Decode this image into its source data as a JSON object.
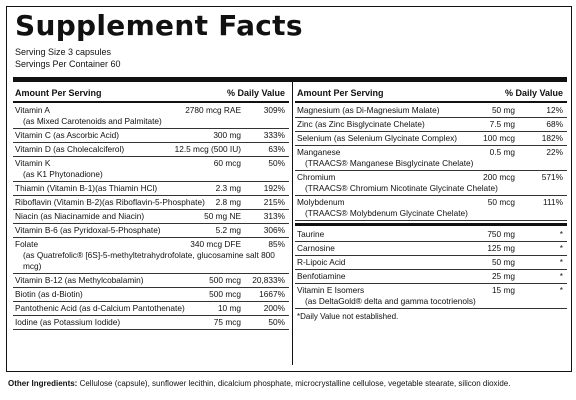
{
  "title": "Supplement Facts",
  "serving_size": "Serving Size 3 capsules",
  "servings_per_container": "Servings Per Container 60",
  "headers": {
    "amount": "Amount Per Serving",
    "dv": "% Daily Value"
  },
  "left_rows": [
    {
      "name": "Vitamin A",
      "sub": "(as Mixed Carotenoids and Palmitate)",
      "amount": "2780 mcg RAE",
      "pct": "309%"
    },
    {
      "name": "Vitamin C (as Ascorbic Acid)",
      "sub": "",
      "amount": "300 mg",
      "pct": "333%"
    },
    {
      "name": "Vitamin D (as Cholecalciferol)",
      "sub": "",
      "amount": "12.5 mcg (500 IU)",
      "pct": "63%"
    },
    {
      "name": "Vitamin K",
      "sub": "(as K1 Phytonadione)",
      "amount": "60 mcg",
      "pct": "50%"
    },
    {
      "name": "Thiamin (Vitamin B-1)(as Thiamin HCl)",
      "sub": "",
      "amount": "2.3 mg",
      "pct": "192%"
    },
    {
      "name": "Riboflavin (Vitamin B-2)(as Riboflavin-5-Phosphate)",
      "sub": "",
      "amount": "2.8 mg",
      "pct": "215%"
    },
    {
      "name": "Niacin (as Niacinamide and Niacin)",
      "sub": "",
      "amount": "50 mg NE",
      "pct": "313%"
    },
    {
      "name": "Vitamin B-6 (as Pyridoxal-5-Phosphate)",
      "sub": "",
      "amount": "5.2 mg",
      "pct": "306%"
    },
    {
      "name": "Folate",
      "sub": "(as Quatrefolic® [6S]-5-methyltetrahydrofolate, glucosamine salt 800 mcg)",
      "amount": "340 mcg DFE",
      "pct": "85%"
    },
    {
      "name": "Vitamin B-12 (as Methylcobalamin)",
      "sub": "",
      "amount": "500 mcg",
      "pct": "20,833%"
    },
    {
      "name": "Biotin (as d-Biotin)",
      "sub": "",
      "amount": "500 mcg",
      "pct": "1667%"
    },
    {
      "name": "Pantothenic Acid (as d-Calcium Pantothenate)",
      "sub": "",
      "amount": "10 mg",
      "pct": "200%"
    },
    {
      "name": "Iodine (as Potassium Iodide)",
      "sub": "",
      "amount": "75 mcg",
      "pct": "50%"
    }
  ],
  "right_rows": [
    {
      "name": "Magnesium (as Di-Magnesium Malate)",
      "sub": "",
      "amount": "50 mg",
      "pct": "12%"
    },
    {
      "name": "Zinc (as Zinc Bisglycinate Chelate)",
      "sub": "",
      "amount": "7.5 mg",
      "pct": "68%"
    },
    {
      "name": "Selenium (as Selenium Glycinate Complex)",
      "sub": "",
      "amount": "100 mcg",
      "pct": "182%"
    },
    {
      "name": "Manganese",
      "sub": "(TRAACS® Manganese Bisglycinate Chelate)",
      "amount": "0.5 mg",
      "pct": "22%"
    },
    {
      "name": "Chromium",
      "sub": "(TRAACS® Chromium Nicotinate Glycinate Chelate)",
      "amount": "200 mcg",
      "pct": "571%"
    },
    {
      "name": "Molybdenum",
      "sub": "(TRAACS® Molybdenum Glycinate Chelate)",
      "amount": "50 mcg",
      "pct": "111%"
    }
  ],
  "right_rows_2": [
    {
      "name": "Taurine",
      "amount": "750 mg",
      "pct": "*"
    },
    {
      "name": "Carnosine",
      "amount": "125 mg",
      "pct": "*"
    },
    {
      "name": "R-Lipoic Acid",
      "amount": "50 mg",
      "pct": "*"
    },
    {
      "name": "Benfotiamine",
      "amount": "25 mg",
      "pct": "*"
    },
    {
      "name": "Vitamin E Isomers",
      "sub": "(as DeltaGold® delta and gamma tocotrienols)",
      "amount": "15 mg",
      "pct": "*"
    }
  ],
  "footnote": "*Daily Value not established.",
  "other_label": "Other Ingredients:",
  "other_text": " Cellulose (capsule), sunflower lecithin, dicalcium phosphate, microcrystalline cellulose, vegetable stearate, silicon dioxide."
}
